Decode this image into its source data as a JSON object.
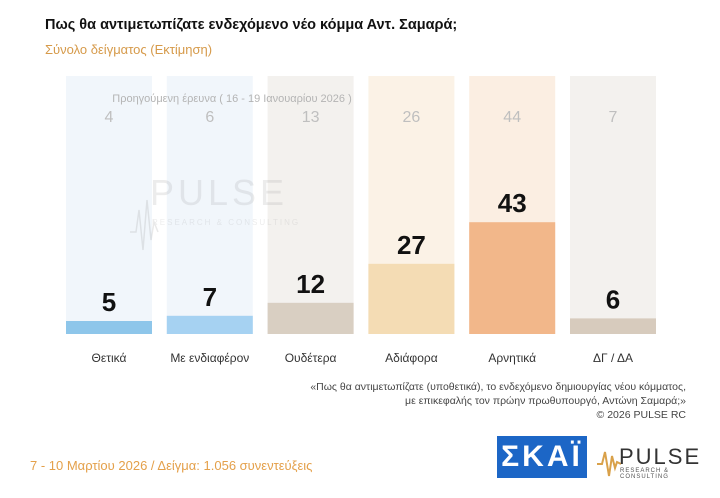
{
  "title": "Πως θα αντιμετωπίζατε ενδεχόμενο νέο κόμμα Αντ. Σαμαρά;",
  "subtitle": "Σύνολο δείγματος  (Εκτίμηση)",
  "previous_survey_label": "Προηγούμενη έρευνα ( 16 - 19 Ιανουαρίου 2026 )",
  "watermark": {
    "word": "PULSE",
    "tagline": "RESEARCH & CONSULTING"
  },
  "chart_data": {
    "type": "bar",
    "categories": [
      "Θετικά",
      "Με ενδιαφέρον",
      "Ουδέτερα",
      "Αδιάφορα",
      "Αρνητικά",
      "ΔΓ / ΔΑ"
    ],
    "values": [
      5,
      7,
      12,
      27,
      43,
      6
    ],
    "previous_values": [
      4,
      6,
      13,
      26,
      44,
      7
    ],
    "bar_colors": [
      "#8ec6ea",
      "#a6d2f2",
      "#d9cfc2",
      "#f4dcb4",
      "#f2b78a",
      "#d7cbbd"
    ],
    "column_shade_colors": [
      "#f1f6fb",
      "#f1f6fb",
      "#f3f1ee",
      "#fbf2e6",
      "#fbeee2",
      "#f3f1ee"
    ],
    "ylim": [
      0,
      50
    ],
    "grid": false,
    "legend": "none"
  },
  "quote": {
    "line1": "«Πως θα αντιμετωπίζατε (υποθετικά), το ενδεχόμενο δημιουργίας νέου κόμματος,",
    "line2": "με επικεφαλής τον πρώην πρωθυπουργό, Αντώνη Σαμαρά;»",
    "copyright": "© 2026 PULSE RC"
  },
  "footer": "7 - 10  Μαρτίου 2026  /  Δείγμα:  1.056 συνεντεύξεις",
  "logos": {
    "skai": "ΣΚΑΪ",
    "pulse": "PULSE",
    "pulse_tagline": "RESEARCH & CONSULTING"
  }
}
